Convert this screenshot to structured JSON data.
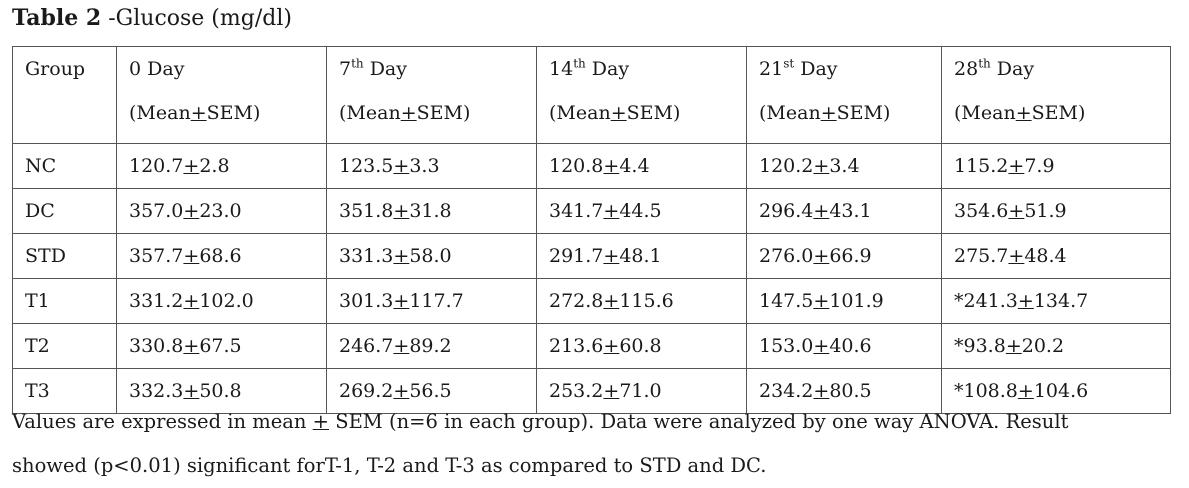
{
  "caption": {
    "label": "Table 2",
    "text": " -Glucose (mg/dl)"
  },
  "table": {
    "columns": [
      {
        "title": "Group",
        "sup": "",
        "title_rest": "",
        "subtitle": ""
      },
      {
        "title": "0 Day",
        "sup": "",
        "title_rest": "",
        "subtitle": "(Mean±SEM)"
      },
      {
        "title": "7",
        "sup": "th",
        "title_rest": " Day",
        "subtitle": "(Mean±SEM)"
      },
      {
        "title": "14",
        "sup": "th",
        "title_rest": " Day",
        "subtitle": "(Mean±SEM)"
      },
      {
        "title": "21",
        "sup": "st",
        "title_rest": " Day",
        "subtitle": "(Mean±SEM)"
      },
      {
        "title": "28",
        "sup": "th",
        "title_rest": " Day",
        "subtitle": "(Mean±SEM)"
      }
    ],
    "rows": [
      {
        "group": "NC",
        "values": [
          "120.7±2.8",
          "123.5±3.3",
          "120.8±4.4",
          "120.2±3.4",
          "115.2±7.9"
        ]
      },
      {
        "group": "DC",
        "values": [
          "357.0±23.0",
          "351.8±31.8",
          "341.7±44.5",
          "296.4±43.1",
          "354.6±51.9"
        ]
      },
      {
        "group": "STD",
        "values": [
          "357.7±68.6",
          "331.3±58.0",
          "291.7±48.1",
          "276.0±66.9",
          "275.7±48.4"
        ]
      },
      {
        "group": "T1",
        "values": [
          "331.2±102.0",
          "301.3±117.7",
          "272.8±115.6",
          "147.5±101.9",
          "*241.3±134.7"
        ]
      },
      {
        "group": "T2",
        "values": [
          "330.8±67.5",
          "246.7±89.2",
          "213.6±60.8",
          "153.0±40.6",
          "*93.8±20.2"
        ]
      },
      {
        "group": "T3",
        "values": [
          "332.3±50.8",
          "269.2±56.5",
          "253.2±71.0",
          "234.2±80.5",
          "*108.8±104.6"
        ]
      }
    ]
  },
  "footnote": {
    "line1": "Values are expressed in mean ± SEM (n=6 in each group). Data were analyzed by one way ANOVA. Result",
    "line2": "showed (p<0.01) significant forT-1, T-2 and T-3 as compared to STD and DC."
  }
}
